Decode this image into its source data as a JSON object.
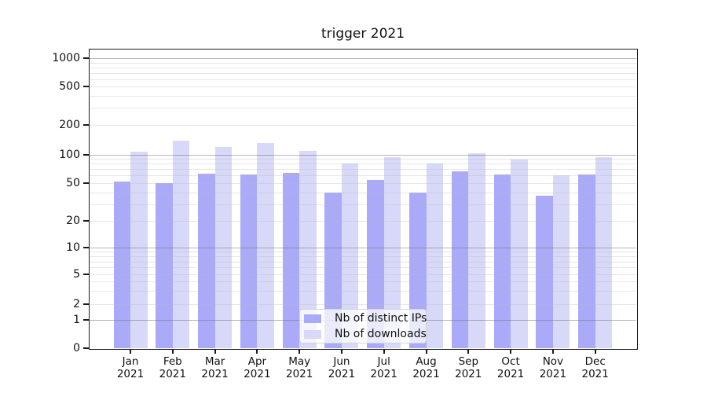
{
  "chart_data": {
    "type": "bar",
    "title": "trigger 2021",
    "categories": [
      "Jan",
      "Feb",
      "Mar",
      "Apr",
      "May",
      "Jun",
      "Jul",
      "Aug",
      "Sep",
      "Oct",
      "Nov",
      "Dec"
    ],
    "category_year": "2021",
    "series": [
      {
        "name": "Nb of distinct IPs",
        "color": "#aaaaf8",
        "values": [
          52,
          50,
          63,
          61,
          64,
          40,
          54,
          40,
          66,
          61,
          37,
          61
        ]
      },
      {
        "name": "Nb of downloads",
        "color": "#d8d8f8",
        "values": [
          107,
          137,
          119,
          131,
          110,
          81,
          94,
          80,
          104,
          88,
          60,
          94
        ]
      }
    ],
    "yscale": "symlog",
    "ylim": [
      0,
      1000
    ],
    "y_ticks": [
      0,
      1,
      2,
      5,
      10,
      20,
      50,
      100,
      200,
      500,
      1000
    ],
    "grid": true,
    "legend_position": "lower-center-inside"
  }
}
